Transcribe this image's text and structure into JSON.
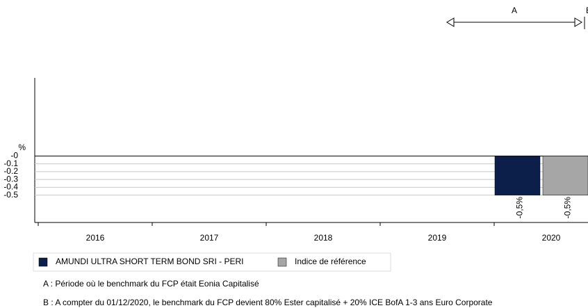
{
  "chart_data": {
    "type": "bar",
    "y_label": "%",
    "categories": [
      "2016",
      "2017",
      "2018",
      "2019",
      "2020"
    ],
    "series": [
      {
        "name": "AMUNDI ULTRA SHORT TERM BOND SRI - PERI",
        "color": "#0c1f4a",
        "values": [
          null,
          null,
          null,
          null,
          -0.5
        ],
        "value_labels": [
          null,
          null,
          null,
          null,
          "-0,5%"
        ]
      },
      {
        "name": "Indice de référence",
        "color": "#a6a6a6",
        "values": [
          null,
          null,
          null,
          null,
          -0.5
        ],
        "value_labels": [
          null,
          null,
          null,
          null,
          "-0,5%"
        ]
      }
    ],
    "ylim": [
      -0.85,
      1.0
    ],
    "yticks": [
      {
        "value": 0,
        "label": "-0"
      },
      -0.1,
      -0.2,
      -0.3,
      -0.4,
      -0.5
    ],
    "grid": true,
    "annotations": {
      "period_a": "A",
      "period_b": "B"
    },
    "notes": [
      "A : Période où le benchmark du FCP était Eonia Capitalisé",
      "B : A compter du 01/12/2020, le benchmark du FCP devient 80% Ester capitalisé + 20% ICE BofA 1-3 ans Euro Corporate"
    ]
  }
}
